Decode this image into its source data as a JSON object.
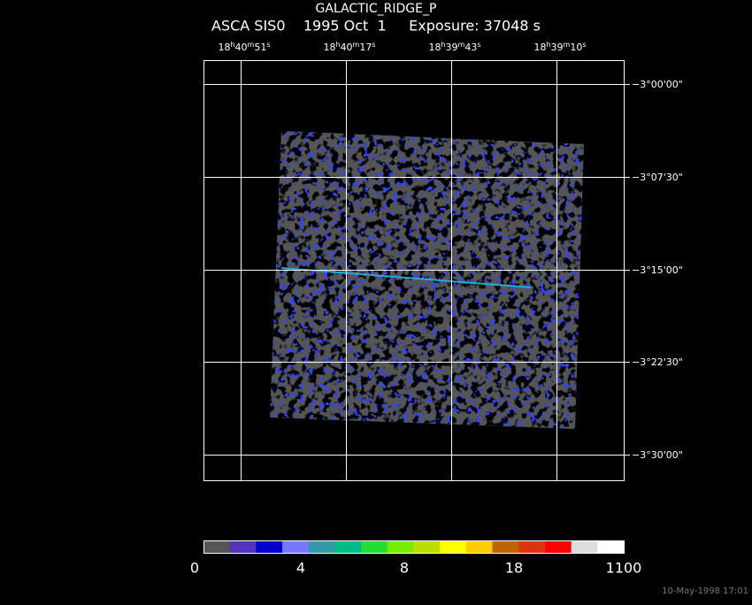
{
  "header": {
    "title": "GALACTIC_RIDGE_P",
    "subtitle": "ASCA SIS0    1995 Oct  1     Exposure: 37048 s"
  },
  "ra_labels": [
    [
      "18",
      "h",
      "40",
      "m",
      "51",
      "s"
    ],
    [
      "18",
      "h",
      "40",
      "m",
      "17",
      "s"
    ],
    [
      "18",
      "h",
      "39",
      "m",
      "43",
      "s"
    ],
    [
      "18",
      "h",
      "39",
      "m",
      "10",
      "s"
    ]
  ],
  "dec_labels": [
    "−3°00'00\"",
    "−3°07'30\"",
    "−3°15'00\"",
    "−3°22'30\"",
    "−3°30'00\""
  ],
  "colorbar_labels": [
    "0",
    "4",
    "8",
    "18",
    "1100"
  ],
  "timestamp": "10-May-1998 17:01"
}
